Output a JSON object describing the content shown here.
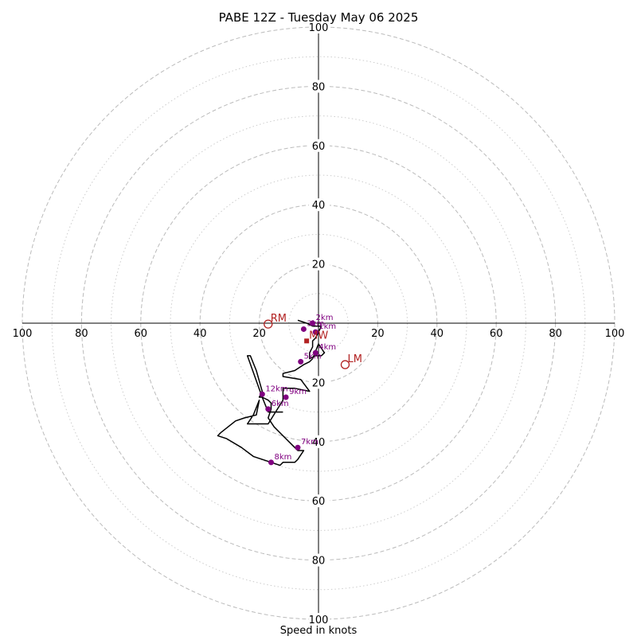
{
  "chart_data": {
    "type": "scatter",
    "title": "PABE 12Z - Tuesday May 06 2025",
    "xlabel": "Speed in knots",
    "ylabel": "",
    "xlim": [
      -100,
      100
    ],
    "ylim": [
      -100,
      100
    ],
    "rings": [
      10,
      20,
      30,
      40,
      50,
      60,
      70,
      80,
      90,
      100
    ],
    "tick_labels": {
      "left": [
        "100",
        "80",
        "60",
        "40",
        "20"
      ],
      "right": [
        "20",
        "40",
        "60",
        "80",
        "100"
      ],
      "top": [
        "100",
        "80",
        "60",
        "40",
        "20"
      ],
      "bottom": [
        "20",
        "40",
        "60",
        "80",
        "100"
      ]
    },
    "hodograph": {
      "u": [
        -7,
        -4,
        -2,
        1,
        -1,
        -2,
        -2,
        -3,
        -3,
        -1,
        1,
        2,
        0,
        -2,
        -3,
        -5,
        -8,
        -12,
        -12,
        -6,
        -3,
        -8,
        -12,
        -12,
        -17,
        -24,
        -22,
        -20,
        -21,
        -25,
        -28,
        -33,
        -34,
        -31,
        -26,
        -22,
        -16,
        -13,
        -12,
        -8,
        -7,
        -5,
        -7,
        -8,
        -11,
        -13,
        -15,
        -17,
        -16,
        -16,
        -17,
        -19,
        -20,
        -19,
        -21,
        -23,
        -24,
        -19,
        -17,
        -12
      ],
      "v": [
        1,
        0,
        -1,
        -1,
        -5,
        -6,
        -8,
        -10,
        -12,
        -11,
        -11,
        -10,
        -7,
        -12,
        -13,
        -14,
        -16,
        -17,
        -18,
        -19,
        -23,
        -22,
        -22,
        -26,
        -34,
        -34,
        -31,
        -26,
        -31,
        -32,
        -33,
        -37,
        -38,
        -39,
        -42,
        -45,
        -47,
        -48,
        -47,
        -47,
        -46,
        -43,
        -43,
        -42,
        -39,
        -37,
        -35,
        -32,
        -29,
        -27,
        -26,
        -25,
        -25,
        -23,
        -16,
        -11,
        -11,
        -25,
        -30,
        -30
      ]
    },
    "height_markers": [
      {
        "label": "1km",
        "u": -1,
        "v": -3
      },
      {
        "label": "2km",
        "u": -2,
        "v": 0
      },
      {
        "label": "3km",
        "u": -5,
        "v": -2
      },
      {
        "label": "4km",
        "u": -1,
        "v": -10
      },
      {
        "label": "5km",
        "u": -6,
        "v": -13
      },
      {
        "label": "6km",
        "u": -17,
        "v": -29
      },
      {
        "label": "7km",
        "u": -7,
        "v": -42
      },
      {
        "label": "8km",
        "u": -16,
        "v": -47
      },
      {
        "label": "9km",
        "u": -11,
        "v": -25
      },
      {
        "label": "12km",
        "u": -19,
        "v": -24
      }
    ],
    "storm_motions": [
      {
        "label": "RM",
        "u": -17,
        "v": -0.3
      },
      {
        "label": "LM",
        "u": 9,
        "v": -14
      },
      {
        "label": "MW",
        "u": -4,
        "v": -6
      }
    ],
    "colors": {
      "hodograph_line": "#000000",
      "height_marker": "#800080",
      "storm_motion": "#b22222",
      "ring_major": "#bbbbbb",
      "ring_minor": "#cccccc",
      "axis": "#000000"
    },
    "grid": true
  }
}
